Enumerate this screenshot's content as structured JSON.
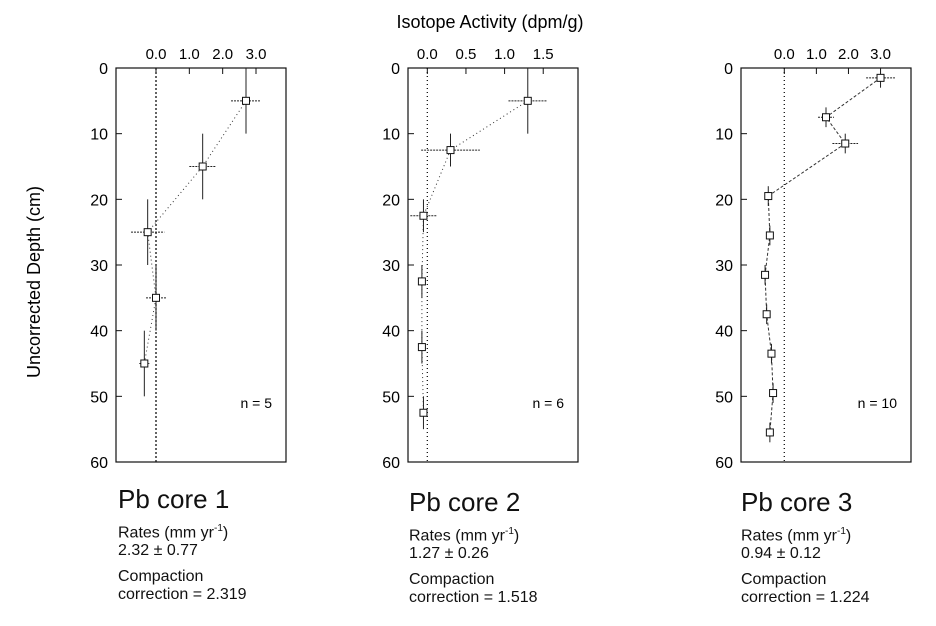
{
  "figure": {
    "top_label": "Isotope Activity (dpm/g)",
    "y_label": "Uncorrected Depth (cm)"
  },
  "chart_data": [
    {
      "type": "scatter",
      "title": "Pb core 1",
      "xlabel": "Isotope Activity (dpm/g)",
      "ylabel": "Uncorrected Depth (cm)",
      "xlim": [
        -1.2,
        3.9
      ],
      "ylim": [
        60,
        0
      ],
      "x_ticks": [
        0.0,
        1.0,
        2.0,
        3.0
      ],
      "x_tick_labels": [
        "0.0",
        "1.0",
        "2.0",
        "3.0"
      ],
      "y_ticks": [
        0,
        10,
        20,
        30,
        40,
        50,
        60
      ],
      "annotation": "n = 5",
      "points": [
        {
          "x": 2.7,
          "y": 5,
          "xerr": 0.45,
          "yerr": 5
        },
        {
          "x": 1.4,
          "y": 15,
          "xerr": 0.4,
          "yerr": 5
        },
        {
          "x": -0.25,
          "y": 25,
          "xerr": 0.5,
          "yerr": 5
        },
        {
          "x": 0.0,
          "y": 35,
          "xerr": 0.3,
          "yerr": 5
        },
        {
          "x": -0.35,
          "y": 45,
          "xerr": 0.15,
          "yerr": 5
        }
      ],
      "rates_value": "2.32 ± 0.77",
      "compaction_value": "correction = 2.319"
    },
    {
      "type": "scatter",
      "title": "Pb core 2",
      "xlabel": "Isotope Activity (dpm/g)",
      "ylabel": "Uncorrected Depth (cm)",
      "xlim": [
        -0.25,
        1.95
      ],
      "ylim": [
        60,
        0
      ],
      "x_ticks": [
        0.0,
        0.5,
        1.0,
        1.5
      ],
      "x_tick_labels": [
        "0.0",
        "0.5",
        "1.0",
        "1.5"
      ],
      "y_ticks": [
        0,
        10,
        20,
        30,
        40,
        50,
        60
      ],
      "annotation": "n = 6",
      "points": [
        {
          "x": 1.3,
          "y": 5,
          "xerr": 0.25,
          "yerr": 5
        },
        {
          "x": 0.3,
          "y": 12.5,
          "xerr": 0.38,
          "yerr": 2.5
        },
        {
          "x": -0.05,
          "y": 22.5,
          "xerr": 0.17,
          "yerr": 2.5
        },
        {
          "x": -0.07,
          "y": 32.5,
          "xerr": 0.02,
          "yerr": 2.5
        },
        {
          "x": -0.07,
          "y": 42.5,
          "xerr": 0.02,
          "yerr": 2.5
        },
        {
          "x": -0.05,
          "y": 52.5,
          "xerr": 0.02,
          "yerr": 2.5
        }
      ],
      "rates_value": "1.27 ± 0.26",
      "compaction_value": "correction = 1.518"
    },
    {
      "type": "scatter",
      "title": "Pb core 3",
      "xlabel": "Isotope Activity (dpm/g)",
      "ylabel": "Uncorrected Depth (cm)",
      "xlim": [
        -1.35,
        3.95
      ],
      "ylim": [
        60,
        0
      ],
      "x_ticks": [
        0.0,
        1.0,
        2.0,
        3.0
      ],
      "x_tick_labels": [
        "0.0",
        "1.0",
        "2.0",
        "3.0"
      ],
      "y_ticks": [
        0,
        10,
        20,
        30,
        40,
        50,
        60
      ],
      "annotation": "n = 10",
      "points": [
        {
          "x": 3.0,
          "y": 1.5,
          "xerr": 0.45,
          "yerr": 1.5
        },
        {
          "x": 1.3,
          "y": 7.5,
          "xerr": 0.25,
          "yerr": 1.5
        },
        {
          "x": 1.9,
          "y": 11.5,
          "xerr": 0.4,
          "yerr": 1.5
        },
        {
          "x": -0.5,
          "y": 19.5,
          "xerr": 0.08,
          "yerr": 1.5
        },
        {
          "x": -0.45,
          "y": 25.5,
          "xerr": 0.08,
          "yerr": 1.5
        },
        {
          "x": -0.6,
          "y": 31.5,
          "xerr": 0.08,
          "yerr": 1.5
        },
        {
          "x": -0.55,
          "y": 37.5,
          "xerr": 0.08,
          "yerr": 1.5
        },
        {
          "x": -0.4,
          "y": 43.5,
          "xerr": 0.08,
          "yerr": 1.5
        },
        {
          "x": -0.35,
          "y": 49.5,
          "xerr": 0.08,
          "yerr": 1.5
        },
        {
          "x": -0.45,
          "y": 55.5,
          "xerr": 0.05,
          "yerr": 1.5
        }
      ],
      "rates_value": "0.94 ± 0.12",
      "compaction_value": "correction = 1.224"
    }
  ],
  "captions": [
    {
      "title": "Pb core 1",
      "rates_label": "Rates (mm yr",
      "rates_sup": "-1",
      "rates_close": ")",
      "rates_value": "2.32 ± 0.77",
      "compaction_label": "Compaction",
      "compaction_value": "correction = 2.319"
    },
    {
      "title": "Pb core 2",
      "rates_label": "Rates (mm yr",
      "rates_sup": "-1",
      "rates_close": ")",
      "rates_value": "1.27 ± 0.26",
      "compaction_label": "Compaction",
      "compaction_value": "correction = 1.518"
    },
    {
      "title": "Pb core 3",
      "rates_label": "Rates (mm yr",
      "rates_sup": "-1",
      "rates_close": ")",
      "rates_value": "0.94 ± 0.12",
      "compaction_label": "Compaction",
      "compaction_value": "correction = 1.224"
    }
  ]
}
